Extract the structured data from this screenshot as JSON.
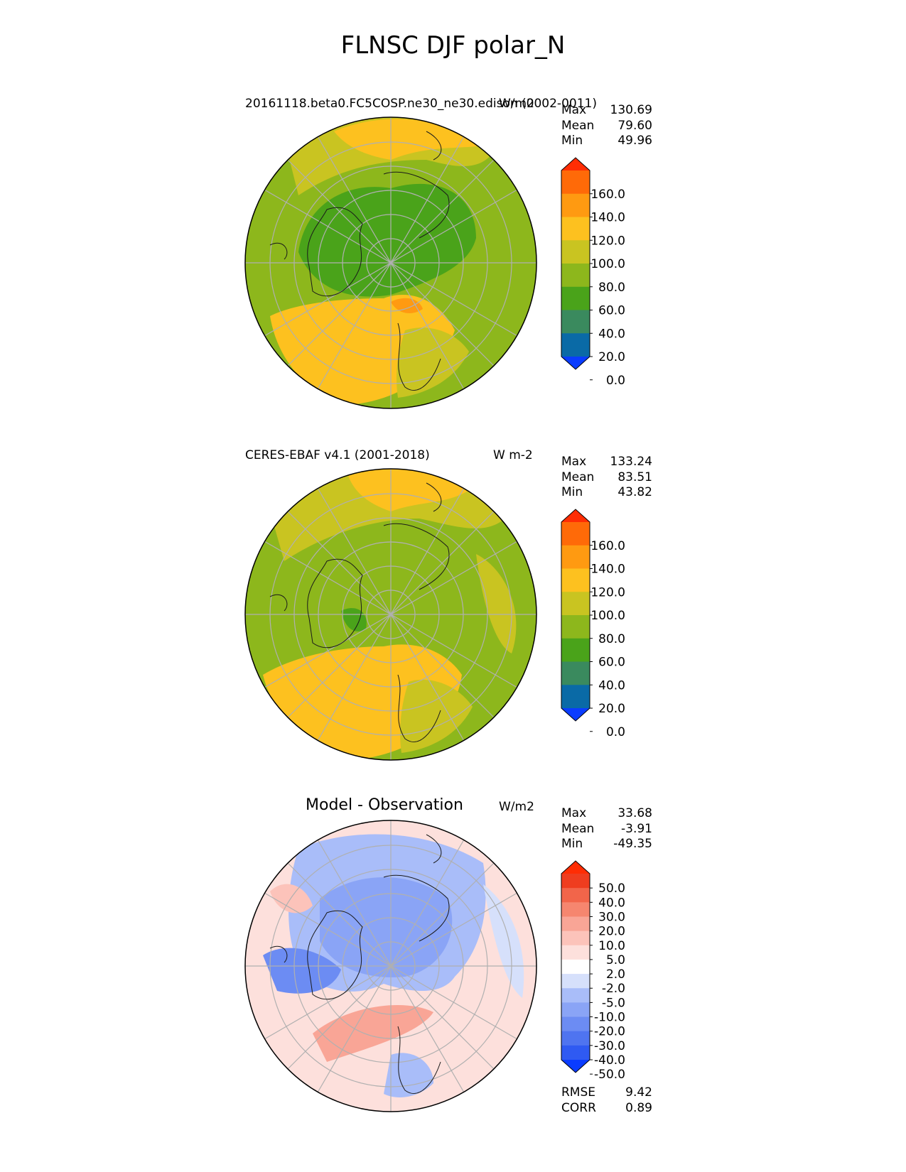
{
  "figure": {
    "title": "FLNSC DJF polar_N"
  },
  "colors": {
    "abs_levels": [
      "#0a3cff",
      "#0a6aa6",
      "#3a8a5e",
      "#4aa31a",
      "#8db71c",
      "#c9c421",
      "#fdc11f",
      "#ff9a11",
      "#ff6a08",
      "#ff2d04"
    ],
    "diff_levels": [
      "#0a3cff",
      "#2f5af2",
      "#4f74f0",
      "#6c8cf3",
      "#8aa4f6",
      "#a9bdf9",
      "#d6e0fb",
      "#ffffff",
      "#fde0dc",
      "#fcc3ba",
      "#f9a596",
      "#f6866f",
      "#f2654a",
      "#ef3d1f",
      "#ff2d04"
    ],
    "grid": "#b0b0b0",
    "coast": "#1a1a1a"
  },
  "panels": [
    {
      "case_title": "20161118.beta0.FC5COSP.ne30_ne30.edison (0002-0011)",
      "units": "W/m2",
      "stats": {
        "max_label": "Max",
        "max": "130.69",
        "mean_label": "Mean",
        "mean": "79.60",
        "min_label": "Min",
        "min": "49.96"
      }
    },
    {
      "case_title": "CERES-EBAF v4.1 (2001-2018)",
      "units": "W m-2",
      "stats": {
        "max_label": "Max",
        "max": "133.24",
        "mean_label": "Mean",
        "mean": "83.51",
        "min_label": "Min",
        "min": "43.82"
      }
    },
    {
      "panel_title": "Model - Observation",
      "units": "W/m2",
      "stats": {
        "max_label": "Max",
        "max": "33.68",
        "mean_label": "Mean",
        "mean": "-3.91",
        "min_label": "Min",
        "min": "-49.35"
      },
      "metrics": {
        "rmse_label": "RMSE",
        "rmse": "9.42",
        "corr_label": "CORR",
        "corr": "0.89"
      }
    }
  ],
  "chart_data": [
    {
      "type": "heatmap",
      "projection": "north polar stereographic",
      "colorbar_ticks": [
        "160.0",
        "140.0",
        "120.0",
        "100.0",
        "80.0",
        "60.0",
        "40.0",
        "20.0",
        "0.0"
      ],
      "colorbar_levels": [
        0,
        20,
        40,
        60,
        80,
        100,
        120,
        140,
        160
      ],
      "colorbar_extend": "both",
      "grid": true
    },
    {
      "type": "heatmap",
      "projection": "north polar stereographic",
      "colorbar_ticks": [
        "160.0",
        "140.0",
        "120.0",
        "100.0",
        "80.0",
        "60.0",
        "40.0",
        "20.0",
        "0.0"
      ],
      "colorbar_levels": [
        0,
        20,
        40,
        60,
        80,
        100,
        120,
        140,
        160
      ],
      "colorbar_extend": "both",
      "grid": true
    },
    {
      "type": "heatmap",
      "projection": "north polar stereographic",
      "colorbar_ticks": [
        "50.0",
        "40.0",
        "30.0",
        "20.0",
        "10.0",
        "5.0",
        "2.0",
        "-2.0",
        "-5.0",
        "-10.0",
        "-20.0",
        "-30.0",
        "-40.0",
        "-50.0"
      ],
      "colorbar_levels": [
        -50,
        -40,
        -30,
        -20,
        -10,
        -5,
        -2,
        2,
        5,
        10,
        20,
        30,
        40,
        50
      ],
      "colorbar_extend": "both",
      "grid": true
    }
  ]
}
